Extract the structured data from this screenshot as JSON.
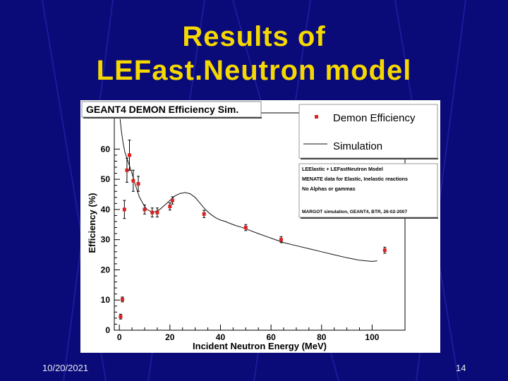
{
  "slide": {
    "title_line1": "Results of",
    "title_line2": "LEFast.Neutron model",
    "date": "10/20/2021",
    "page_number": "14",
    "background_color": "#0a0a78",
    "title_color": "#f5d800"
  },
  "chart_data": {
    "type": "scatter",
    "title": "GEANT4 DEMON Efficiency Sim.",
    "xlabel": "Incident Neutron Energy (MeV)",
    "ylabel": "Efficiency (%)",
    "xlim": [
      -2,
      113
    ],
    "ylim": [
      0,
      72
    ],
    "x_ticks": [
      "0",
      "20",
      "40",
      "60",
      "80",
      "100"
    ],
    "y_ticks": [
      "0",
      "10",
      "20",
      "30",
      "40",
      "50",
      "60"
    ],
    "grid": false,
    "legend_position": "top-right",
    "series": [
      {
        "name": "Demon Efficiency",
        "kind": "points",
        "color": "#e02020",
        "x": [
          0.5,
          1.2,
          2.0,
          3.0,
          4.0,
          5.5,
          7.5,
          10.0,
          13.0,
          15.0,
          20.0,
          21.0,
          33.5,
          50.0,
          64.0,
          105.0
        ],
        "y": [
          4.5,
          10.2,
          40.0,
          53.0,
          58.0,
          49.5,
          48.5,
          40.0,
          39.0,
          39.0,
          41.0,
          43.0,
          38.5,
          34.0,
          30.0,
          26.5
        ],
        "err": [
          0.8,
          0.8,
          3.0,
          4.0,
          5.0,
          3.5,
          2.5,
          1.5,
          1.5,
          1.5,
          1.2,
          1.2,
          1.2,
          1.0,
          1.0,
          1.0
        ]
      },
      {
        "name": "Simulation",
        "kind": "line",
        "color": "#111111",
        "x": [
          0.3,
          0.8,
          1.5,
          2.2,
          3.0,
          4.0,
          5.0,
          6.0,
          7.0,
          8.0,
          9.0,
          10.0,
          11.0,
          12.0,
          13.0,
          14.0,
          15.0,
          16.0,
          18.0,
          20.0,
          22.0,
          24.0,
          26.0,
          28.0,
          30.0,
          32.0,
          34.0,
          36.0,
          38.0,
          40.0,
          42.0,
          44.0,
          46.0,
          48.0,
          50.0,
          55.0,
          60.0,
          65.0,
          70.0,
          75.0,
          80.0,
          85.0,
          90.0,
          95.0,
          100.0,
          102.0
        ],
        "y": [
          70.0,
          66.0,
          62.0,
          59.0,
          57.0,
          54.5,
          52.0,
          49.0,
          46.5,
          44.0,
          42.5,
          41.0,
          40.0,
          39.5,
          39.0,
          39.2,
          39.6,
          40.0,
          41.5,
          43.0,
          44.5,
          45.3,
          45.6,
          45.2,
          44.0,
          42.0,
          40.0,
          38.5,
          37.3,
          36.5,
          36.0,
          35.3,
          34.7,
          34.2,
          33.6,
          32.0,
          30.5,
          29.0,
          28.0,
          27.0,
          26.0,
          25.0,
          24.0,
          23.2,
          22.8,
          23.0
        ]
      }
    ],
    "annotation_lines": [
      "LEElastic + LEFastNeutron Model",
      "MENATE data for Elastic, Inelastic reactions",
      "No Alphas or gammas",
      "MARGOT simulation, GEANT4, BTR, 26-02-2007"
    ]
  }
}
